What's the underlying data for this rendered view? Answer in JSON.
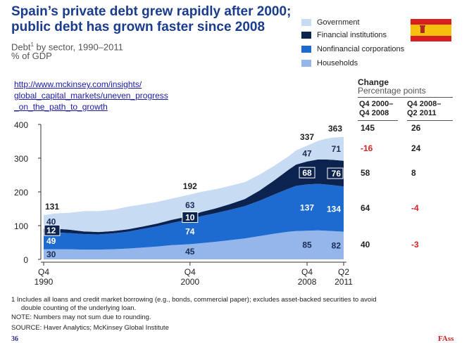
{
  "header": {
    "title_line1": "Spain’s private debt grew rapidly after 2000;",
    "title_line2": "public debt has grown faster since 2008",
    "subtitle_text": "Debt",
    "subtitle_sup": "1",
    "subtitle_rest": " by sector, 1990–2011",
    "unit": "% of GDP"
  },
  "link": {
    "line1": "http://www.mckinsey.com/insights/",
    "line2": "global_capital_markets/uneven_progress",
    "line3": "_on_the_path_to_growth"
  },
  "legend": [
    {
      "label": "Government",
      "color": "#c7dbf3"
    },
    {
      "label": "Financial institutions",
      "color": "#0c2350"
    },
    {
      "label": "Nonfinancial corporations",
      "color": "#1d6bd0"
    },
    {
      "label": "Households",
      "color": "#94b6ea"
    }
  ],
  "change_table": {
    "heading": "Change",
    "subheading": "Percentage points",
    "col1_line1": "Q4 2000–",
    "col1_line2": "Q4 2008",
    "col2_line1": "Q4 2008–",
    "col2_line2": "Q2 2011",
    "rows": [
      {
        "c1": "145",
        "c1_color": "#222222",
        "c2": "26",
        "c2_color": "#222222"
      },
      {
        "c1": "-16",
        "c1_color": "#d62424",
        "c2": "24",
        "c2_color": "#222222"
      },
      {
        "c1": "58",
        "c1_color": "#222222",
        "c2": "8",
        "c2_color": "#222222"
      },
      {
        "c1": "64",
        "c1_color": "#222222",
        "c2": "-4",
        "c2_color": "#d62424"
      },
      {
        "c1": "40",
        "c1_color": "#222222",
        "c2": "-3",
        "c2_color": "#d62424"
      }
    ]
  },
  "chart_data": {
    "type": "area",
    "title": "Spain’s private debt grew rapidly after 2000; public debt has grown faster since 2008",
    "subtitle": "Debt by sector, 1990–2011",
    "ylabel": "% of GDP",
    "ylim": [
      0,
      400
    ],
    "yticks": [
      0,
      100,
      200,
      300,
      400
    ],
    "x_ticks": [
      {
        "x": 1990.75,
        "line1": "Q4",
        "line2": "1990"
      },
      {
        "x": 2000.75,
        "line1": "Q4",
        "line2": "2000"
      },
      {
        "x": 2008.75,
        "line1": "Q4",
        "line2": "2008"
      },
      {
        "x": 2011.25,
        "line1": "Q2",
        "line2": "2011"
      }
    ],
    "xlim": [
      1990.75,
      2011.25
    ],
    "x": [
      1990.75,
      1991.5,
      1992.5,
      1993.5,
      1994.5,
      1995.5,
      1996.5,
      1997.5,
      1998.5,
      1999.5,
      2000.75,
      2001.5,
      2002.5,
      2003.5,
      2004.5,
      2005.5,
      2006.5,
      2007.5,
      2008.0,
      2008.75,
      2009.5,
      2010.0,
      2010.5,
      2011.25
    ],
    "series": [
      {
        "name": "Households",
        "color": "#94b6ea",
        "values": [
          30,
          30,
          30,
          29,
          29,
          30,
          32,
          35,
          38,
          42,
          45,
          48,
          52,
          57,
          62,
          69,
          76,
          82,
          84,
          85,
          86,
          85,
          84,
          82
        ]
      },
      {
        "name": "Nonfinancial corporations",
        "color": "#1d6bd0",
        "values": [
          49,
          50,
          48,
          46,
          45,
          47,
          50,
          55,
          60,
          66,
          74,
          80,
          85,
          90,
          96,
          105,
          116,
          128,
          134,
          137,
          138,
          137,
          136,
          134
        ]
      },
      {
        "name": "Financial institutions",
        "color": "#0c2350",
        "values": [
          12,
          11,
          10,
          8,
          7,
          7,
          7,
          7,
          8,
          9,
          10,
          12,
          14,
          17,
          21,
          30,
          42,
          56,
          63,
          68,
          72,
          74,
          75,
          76
        ]
      },
      {
        "name": "Government",
        "color": "#c7dbf3",
        "values": [
          40,
          45,
          50,
          60,
          62,
          63,
          67,
          66,
          64,
          63,
          63,
          60,
          57,
          54,
          50,
          47,
          43,
          40,
          42,
          47,
          55,
          61,
          66,
          71
        ]
      }
    ],
    "totals": [
      {
        "x": 1990.75,
        "label": "131"
      },
      {
        "x": 2000.75,
        "label": "192"
      },
      {
        "x": 2008.75,
        "label": "337"
      },
      {
        "x": 2011.25,
        "label": "363"
      }
    ],
    "data_labels": [
      {
        "x": 1990.75,
        "series": "Households",
        "label": "30"
      },
      {
        "x": 1990.75,
        "series": "Nonfinancial corporations",
        "label": "49"
      },
      {
        "x": 1990.75,
        "series": "Financial institutions",
        "label": "12"
      },
      {
        "x": 1990.75,
        "series": "Government",
        "label": "40"
      },
      {
        "x": 2000.75,
        "series": "Households",
        "label": "45"
      },
      {
        "x": 2000.75,
        "series": "Nonfinancial corporations",
        "label": "74"
      },
      {
        "x": 2000.75,
        "series": "Financial institutions",
        "label": "10"
      },
      {
        "x": 2000.75,
        "series": "Government",
        "label": "63"
      },
      {
        "x": 2008.75,
        "series": "Households",
        "label": "85"
      },
      {
        "x": 2008.75,
        "series": "Nonfinancial corporations",
        "label": "137"
      },
      {
        "x": 2008.75,
        "series": "Financial institutions",
        "label": "68"
      },
      {
        "x": 2008.75,
        "series": "Government",
        "label": "47"
      },
      {
        "x": 2011.25,
        "series": "Households",
        "label": "82"
      },
      {
        "x": 2011.25,
        "series": "Nonfinancial corporations",
        "label": "134"
      },
      {
        "x": 2011.25,
        "series": "Financial institutions",
        "label": "76"
      },
      {
        "x": 2011.25,
        "series": "Government",
        "label": "71"
      }
    ],
    "grid": false,
    "legend_position": "top-right"
  },
  "footnotes": {
    "note1": "1  Includes all loans and credit market borrowing (e.g., bonds, commercial paper); excludes asset-backed securities to avoid",
    "note1b": "double counting of the underlying loan.",
    "note2": "NOTE: Numbers may not sum due to rounding.",
    "source": "SOURCE: Haver Analytics; McKinsey Global Institute"
  },
  "page_number": "36",
  "corner_mark": "FAss"
}
